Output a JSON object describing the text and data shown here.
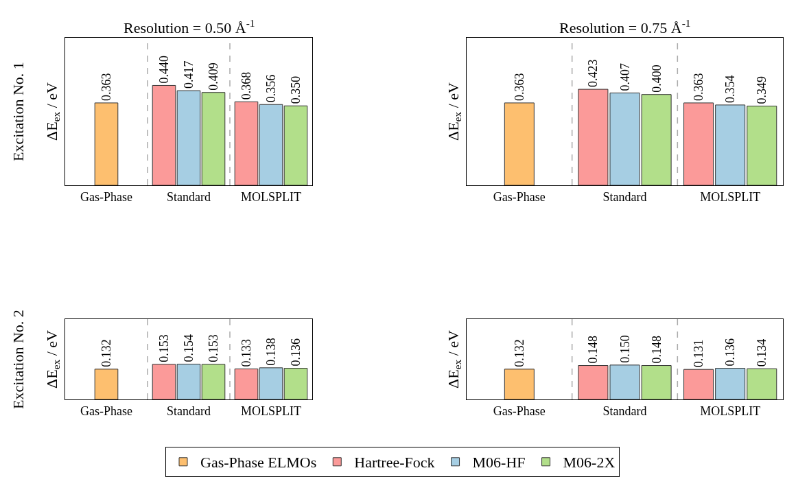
{
  "chart_data": [
    {
      "type": "bar",
      "title": "Resolution = 0.50 Å$^{-1}$",
      "ylabel": "ΔE$_{ex}$ / eV",
      "annotations": [
        "Excitation No. 1"
      ],
      "categories": [
        "Gas-Phase",
        "Standard",
        "MOLSPLIT"
      ],
      "ylim": [
        0,
        0.65
      ],
      "tick_labels": "x",
      "legend": "bottom",
      "series": [
        {
          "name": "Gas-Phase ELMOs",
          "color": "#fdbf6f",
          "values": [
            0.363,
            null,
            null
          ],
          "value_labels": [
            "0.363",
            null,
            null
          ]
        },
        {
          "name": "Hartree-Fock",
          "color": "#fb9a99",
          "values": [
            null,
            0.44,
            0.368
          ],
          "value_labels": [
            null,
            "0.440",
            "0.368"
          ]
        },
        {
          "name": "M06-HF",
          "color": "#a6cee3",
          "values": [
            null,
            0.417,
            0.356
          ],
          "value_labels": [
            null,
            "0.417",
            "0.356"
          ]
        },
        {
          "name": "M06-2X",
          "color": "#b2df8a",
          "values": [
            null,
            0.409,
            0.35
          ],
          "value_labels": [
            null,
            "0.409",
            "0.350"
          ]
        }
      ]
    },
    {
      "type": "bar",
      "title": "Resolution = 0.75 Å$^{-1}$",
      "ylabel": "ΔE$_{ex}$ / eV",
      "categories": [
        "Gas-Phase",
        "Standard",
        "MOLSPLIT"
      ],
      "ylim": [
        0,
        0.65
      ],
      "tick_labels": "x",
      "series": [
        {
          "color": "#fdbf6f",
          "values": [
            0.363,
            null,
            null
          ],
          "value_labels": [
            "0.363",
            null,
            null
          ]
        },
        {
          "color": "#fb9a99",
          "values": [
            null,
            0.423,
            0.363
          ],
          "value_labels": [
            null,
            "0.423",
            "0.363"
          ]
        },
        {
          "color": "#a6cee3",
          "values": [
            null,
            0.407,
            0.354
          ],
          "value_labels": [
            null,
            "0.407",
            "0.354"
          ]
        },
        {
          "color": "#b2df8a",
          "values": [
            null,
            0.4,
            0.349
          ],
          "value_labels": [
            null,
            "0.400",
            "0.349"
          ]
        }
      ]
    },
    {
      "type": "bar",
      "ylabel": "ΔE$_{ex}$ / eV",
      "annotations": [
        "Excitation No. 2"
      ],
      "categories": [
        "Gas-Phase",
        "Standard",
        "MOLSPLIT"
      ],
      "ylim": [
        0,
        0.35
      ],
      "tick_labels": "x",
      "series": [
        {
          "color": "#fdbf6f",
          "values": [
            0.132,
            null,
            null
          ],
          "value_labels": [
            "0.132",
            null,
            null
          ]
        },
        {
          "color": "#fb9a99",
          "values": [
            null,
            0.153,
            0.133
          ],
          "value_labels": [
            null,
            "0.153",
            "0.133"
          ]
        },
        {
          "color": "#a6cee3",
          "values": [
            null,
            0.154,
            0.138
          ],
          "value_labels": [
            null,
            "0.154",
            "0.138"
          ]
        },
        {
          "color": "#b2df8a",
          "values": [
            null,
            0.153,
            0.136
          ],
          "value_labels": [
            null,
            "0.153",
            "0.136"
          ]
        }
      ]
    },
    {
      "type": "bar",
      "ylabel": "ΔE$_{ex}$ / eV",
      "categories": [
        "Gas-Phase",
        "Standard",
        "MOLSPLIT"
      ],
      "ylim": [
        0,
        0.35
      ],
      "tick_labels": "x",
      "series": [
        {
          "color": "#fdbf6f",
          "values": [
            0.132,
            null,
            null
          ],
          "value_labels": [
            "0.132",
            null,
            null
          ]
        },
        {
          "color": "#fb9a99",
          "values": [
            null,
            0.148,
            0.131
          ],
          "value_labels": [
            null,
            "0.148",
            "0.131"
          ]
        },
        {
          "color": "#a6cee3",
          "values": [
            null,
            0.15,
            0.136
          ],
          "value_labels": [
            null,
            "0.150",
            "0.136"
          ]
        },
        {
          "color": "#b2df8a",
          "values": [
            null,
            0.148,
            0.134
          ],
          "value_labels": [
            null,
            "0.148",
            "0.134"
          ]
        }
      ]
    }
  ]
}
